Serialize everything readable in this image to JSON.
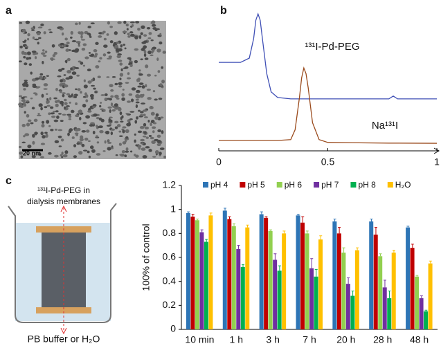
{
  "panel_labels": [
    "a",
    "b",
    "c"
  ],
  "scale_bar": "20 nm",
  "diagram": {
    "top_label": [
      "¹³¹I-Pd-PEG in",
      "dialysis membranes"
    ],
    "bottom_label": "PB buffer or H₂O"
  },
  "chart_data": [
    {
      "type": "line",
      "x": [
        0,
        0.1,
        0.14,
        0.16,
        0.17,
        0.18,
        0.19,
        0.2,
        0.22,
        0.24,
        0.27,
        0.33,
        0.35,
        0.37,
        0.38,
        0.39,
        0.4,
        0.41,
        0.43,
        0.46,
        0.5,
        0.78,
        0.8,
        0.82,
        1
      ],
      "xlim": [
        0,
        1
      ],
      "xticks": [
        0,
        0.5,
        1
      ],
      "ylim": [
        0,
        1
      ],
      "series": [
        {
          "name": "¹³¹I-Pd-PEG",
          "color": "#3f4fb5",
          "values": [
            0.63,
            0.63,
            0.66,
            0.8,
            0.93,
            0.975,
            0.93,
            0.8,
            0.55,
            0.42,
            0.38,
            0.37,
            0.37,
            0.37,
            0.37,
            0.37,
            0.37,
            0.37,
            0.37,
            0.37,
            0.37,
            0.37,
            0.39,
            0.37,
            0.37
          ]
        },
        {
          "name": "Na¹³¹I",
          "color": "#9a4a1c",
          "values": [
            0.074,
            0.074,
            0.074,
            0.074,
            0.074,
            0.074,
            0.074,
            0.074,
            0.074,
            0.074,
            0.074,
            0.08,
            0.15,
            0.38,
            0.52,
            0.59,
            0.55,
            0.45,
            0.2,
            0.08,
            0.06,
            0.055,
            0.055,
            0.055,
            0.054
          ]
        }
      ]
    },
    {
      "type": "bar",
      "y_label": "100% of control",
      "categories": [
        "10 min",
        "1 h",
        "3 h",
        "7 h",
        "20 h",
        "28 h",
        "48 h"
      ],
      "ylim": [
        0,
        1.2
      ],
      "yticks": [
        0,
        0.2,
        0.4,
        0.6,
        0.8,
        1,
        1.2
      ],
      "legend": "top",
      "series": [
        {
          "name": "pH 4",
          "color": "#2e75b6",
          "values": [
            0.97,
            0.99,
            0.96,
            0.95,
            0.9,
            0.9,
            0.85
          ],
          "errors": [
            0.01,
            0.02,
            0.02,
            0.01,
            0.02,
            0.02,
            0.01
          ]
        },
        {
          "name": "pH 5",
          "color": "#c00000",
          "values": [
            0.94,
            0.92,
            0.93,
            0.89,
            0.8,
            0.79,
            0.68
          ],
          "errors": [
            0.02,
            0.02,
            0.01,
            0.05,
            0.05,
            0.06,
            0.03
          ]
        },
        {
          "name": "pH 6",
          "color": "#92d050",
          "values": [
            0.91,
            0.86,
            0.82,
            0.8,
            0.64,
            0.61,
            0.44
          ],
          "errors": [
            0.01,
            0.02,
            0.01,
            0.02,
            0.04,
            0.02,
            0.01
          ]
        },
        {
          "name": "pH 7",
          "color": "#7030a0",
          "values": [
            0.81,
            0.67,
            0.58,
            0.51,
            0.38,
            0.35,
            0.26
          ],
          "errors": [
            0.02,
            0.03,
            0.05,
            0.08,
            0.05,
            0.06,
            0.02
          ]
        },
        {
          "name": "pH 8",
          "color": "#00b050",
          "values": [
            0.73,
            0.52,
            0.49,
            0.44,
            0.28,
            0.26,
            0.15
          ],
          "errors": [
            0.02,
            0.02,
            0.04,
            0.06,
            0.04,
            0.06,
            0.01
          ]
        },
        {
          "name": "H₂O",
          "color": "#ffc000",
          "values": [
            0.95,
            0.85,
            0.8,
            0.75,
            0.66,
            0.64,
            0.55
          ],
          "errors": [
            0.02,
            0.02,
            0.02,
            0.03,
            0.02,
            0.02,
            0.02
          ]
        }
      ]
    }
  ]
}
